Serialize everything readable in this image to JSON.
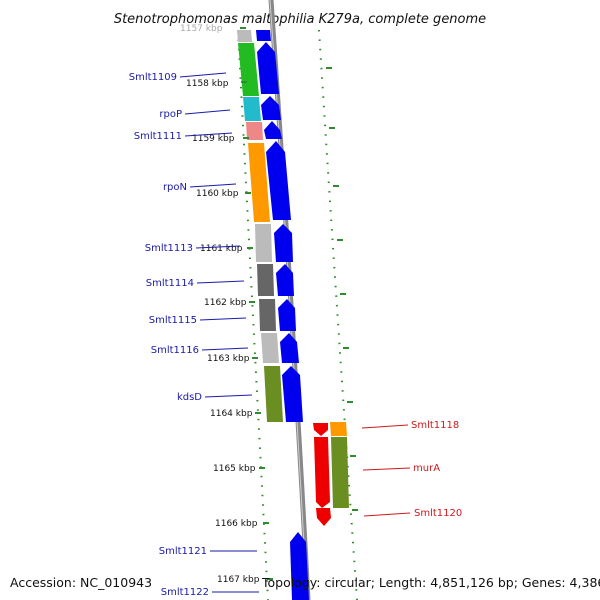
{
  "title": "Stenotrophomonas maltophilia K279a, complete genome",
  "accession": "Accession: NC_010943",
  "topology": "Topology: circular; Length: 4,851,126 bp; Genes: 4,386",
  "colors": {
    "forward_label": "#1a1aa8",
    "reverse_label": "#cc1b1b",
    "cds_forward": "#0000ee",
    "cds_reverse": "#ee0000",
    "backbone": "#888888"
  },
  "kbp_ticks": [
    {
      "label": "1157 kbp",
      "faded": true
    },
    {
      "label": "1158 kbp"
    },
    {
      "label": "1159 kbp"
    },
    {
      "label": "1160 kbp"
    },
    {
      "label": "1161 kbp"
    },
    {
      "label": "1162 kbp"
    },
    {
      "label": "1163 kbp"
    },
    {
      "label": "1164 kbp"
    },
    {
      "label": "1165 kbp"
    },
    {
      "label": "1166 kbp"
    },
    {
      "label": "1167 kbp"
    }
  ],
  "genes": [
    {
      "label": "Smlt1109",
      "strand": "forward",
      "cog_color": "#22bb22"
    },
    {
      "label": "rpoP",
      "strand": "forward",
      "cog_color": "#22bbcc"
    },
    {
      "label": "Smlt1111",
      "strand": "forward",
      "cog_color": "#ee8888"
    },
    {
      "label": "rpoN",
      "strand": "forward",
      "cog_color": "#ff9900"
    },
    {
      "label": "Smlt1113",
      "strand": "forward",
      "cog_color": "#bbbbbb"
    },
    {
      "label": "Smlt1114",
      "strand": "forward",
      "cog_color": "#666666"
    },
    {
      "label": "Smlt1115",
      "strand": "forward",
      "cog_color": "#666666"
    },
    {
      "label": "Smlt1116",
      "strand": "forward",
      "cog_color": "#bbbbbb"
    },
    {
      "label": "kdsD",
      "strand": "forward",
      "cog_color": "#6b8e23"
    },
    {
      "label": "Smlt1118",
      "strand": "reverse",
      "cog_color": "#ff9900"
    },
    {
      "label": "murA",
      "strand": "reverse",
      "cog_color": "#6b8e23"
    },
    {
      "label": "Smlt1120",
      "strand": "reverse",
      "cog_color": "#ee0000"
    },
    {
      "label": "Smlt1121",
      "strand": "forward",
      "cog_color": "#0000ee"
    },
    {
      "label": "Smlt1122",
      "strand": "forward",
      "cog_color": "#0000ee"
    }
  ]
}
